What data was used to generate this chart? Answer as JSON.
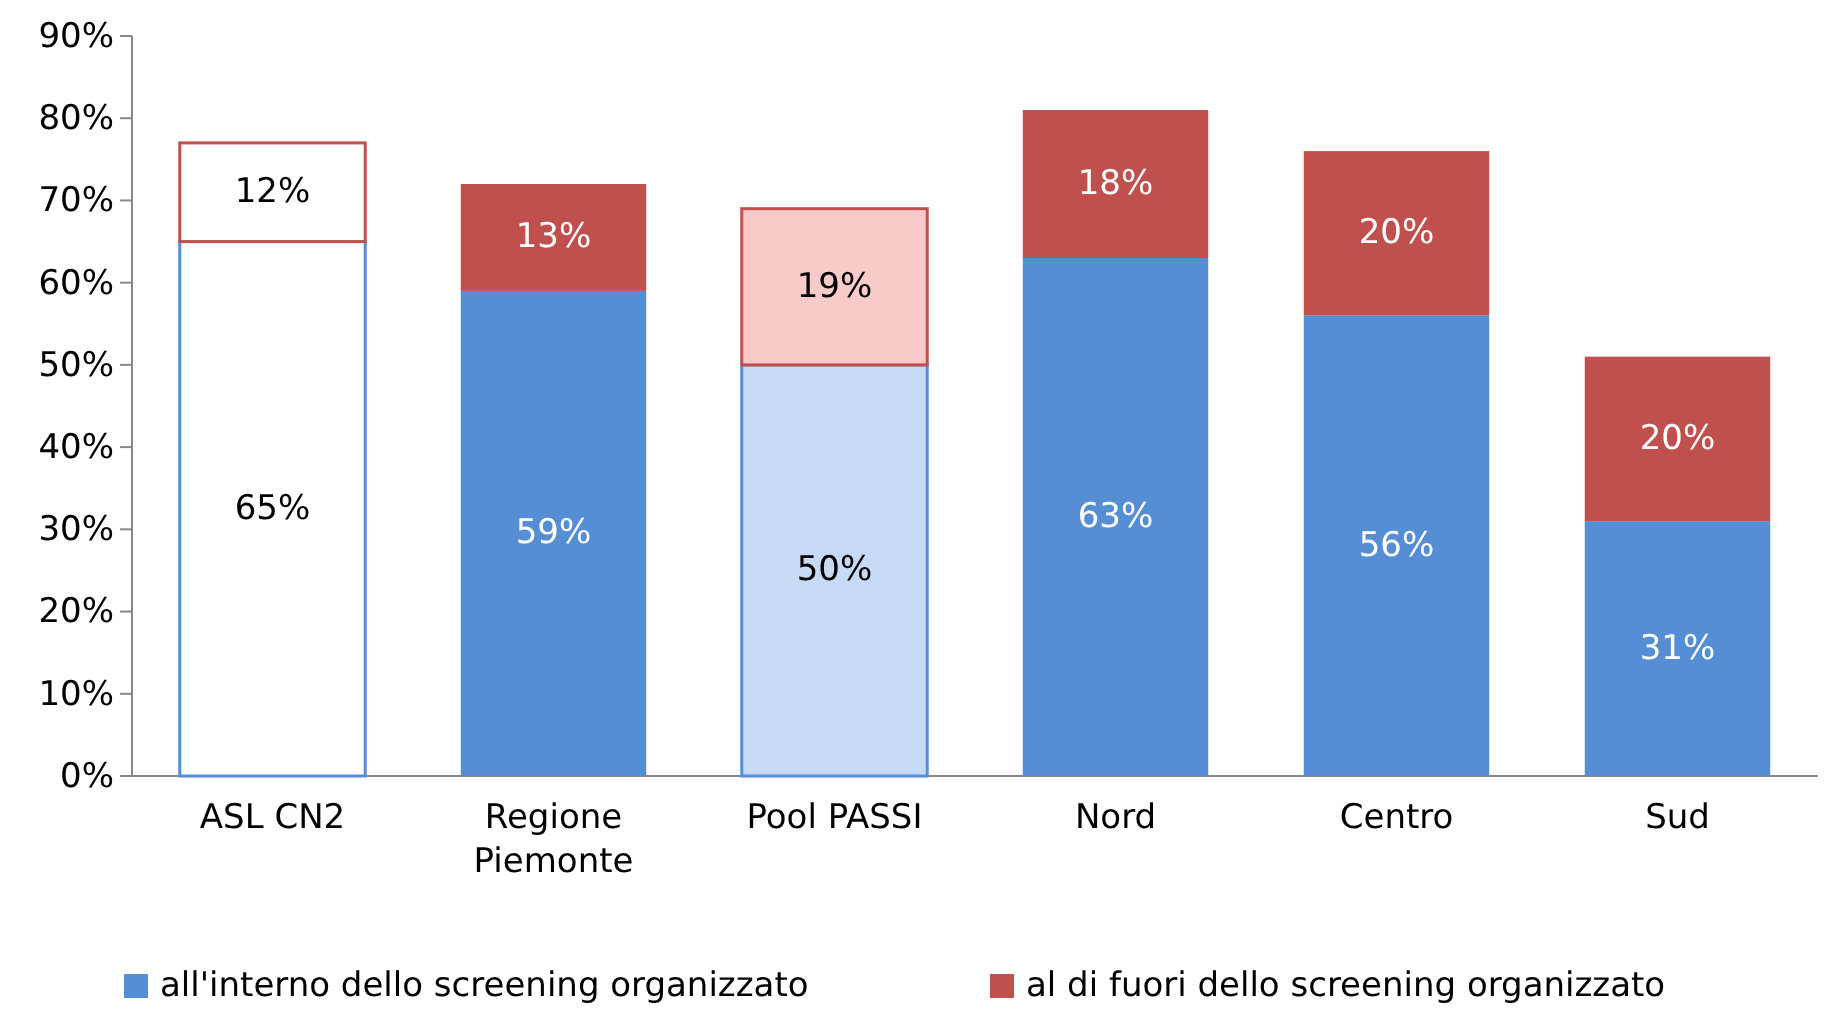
{
  "chart_data": {
    "type": "bar",
    "stacked": true,
    "categories": [
      "ASL CN2",
      "Regione Piemonte",
      "Pool PASSI",
      "Nord",
      "Centro",
      "Sud"
    ],
    "series": [
      {
        "name": "all'interno dello screening organizzato",
        "color": "#558ed5",
        "colors": [
          "#ffffff",
          "#558ed5",
          "#c6d9f5",
          "#558ed5",
          "#558ed5",
          "#558ed5"
        ],
        "values": [
          65,
          59,
          50,
          63,
          56,
          31
        ],
        "value_labels": [
          "65%",
          "59%",
          "50%",
          "63%",
          "56%",
          "31%"
        ]
      },
      {
        "name": "al di fuori dello screening organizzato",
        "color": "#c0504d",
        "colors": [
          "#ffffff",
          "#c0504d",
          "#f8caca",
          "#c0504d",
          "#c0504d",
          "#c0504d"
        ],
        "values": [
          12,
          13,
          19,
          18,
          20,
          20
        ],
        "value_labels": [
          "12%",
          "13%",
          "19%",
          "18%",
          "20%",
          "20%"
        ]
      }
    ],
    "ylim": [
      0,
      90
    ],
    "yticks": [
      {
        "value": 0,
        "label": "0%"
      },
      {
        "value": 10,
        "label": "10%"
      },
      {
        "value": 20,
        "label": "20%"
      },
      {
        "value": 30,
        "label": "30%"
      },
      {
        "value": 40,
        "label": "40%"
      },
      {
        "value": 50,
        "label": "50%"
      },
      {
        "value": 60,
        "label": "60%"
      },
      {
        "value": 70,
        "label": "70%"
      },
      {
        "value": 80,
        "label": "80%"
      },
      {
        "value": 90,
        "label": "90%"
      }
    ],
    "legend": "bottom"
  }
}
